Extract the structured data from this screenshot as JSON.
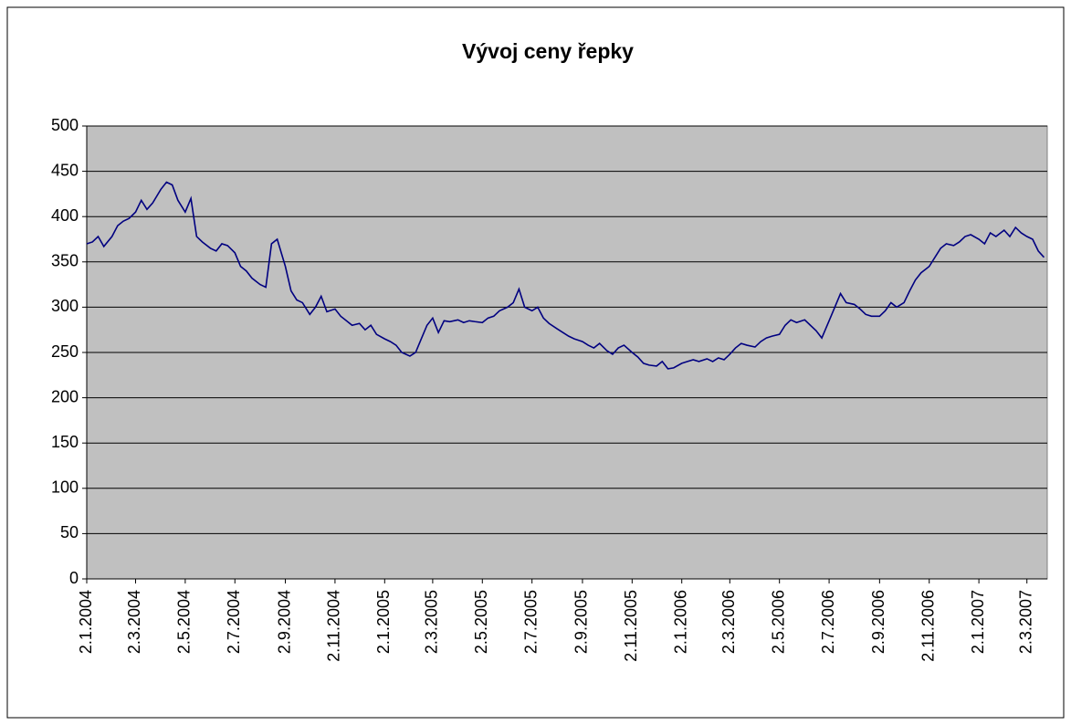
{
  "chart_data": {
    "type": "line",
    "title": "Vývoj ceny řepky",
    "x": [
      "2004-01-02",
      "2004-01-09",
      "2004-01-16",
      "2004-01-23",
      "2004-02-02",
      "2004-02-09",
      "2004-02-16",
      "2004-02-23",
      "2004-03-02",
      "2004-03-09",
      "2004-03-16",
      "2004-03-23",
      "2004-04-02",
      "2004-04-09",
      "2004-04-16",
      "2004-04-23",
      "2004-05-02",
      "2004-05-09",
      "2004-05-16",
      "2004-05-23",
      "2004-06-02",
      "2004-06-09",
      "2004-06-16",
      "2004-06-23",
      "2004-07-02",
      "2004-07-09",
      "2004-07-16",
      "2004-07-23",
      "2004-08-02",
      "2004-08-09",
      "2004-08-16",
      "2004-08-23",
      "2004-09-02",
      "2004-09-09",
      "2004-09-16",
      "2004-09-23",
      "2004-10-02",
      "2004-10-09",
      "2004-10-16",
      "2004-10-23",
      "2004-11-02",
      "2004-11-09",
      "2004-11-16",
      "2004-11-23",
      "2004-12-02",
      "2004-12-09",
      "2004-12-16",
      "2004-12-23",
      "2005-01-02",
      "2005-01-09",
      "2005-01-16",
      "2005-01-23",
      "2005-02-02",
      "2005-02-09",
      "2005-02-16",
      "2005-02-23",
      "2005-03-02",
      "2005-03-09",
      "2005-03-16",
      "2005-03-23",
      "2005-04-02",
      "2005-04-09",
      "2005-04-16",
      "2005-04-23",
      "2005-05-02",
      "2005-05-09",
      "2005-05-16",
      "2005-05-23",
      "2005-06-02",
      "2005-06-09",
      "2005-06-16",
      "2005-06-23",
      "2005-07-02",
      "2005-07-09",
      "2005-07-16",
      "2005-07-23",
      "2005-08-02",
      "2005-08-09",
      "2005-08-16",
      "2005-08-23",
      "2005-09-02",
      "2005-09-09",
      "2005-09-16",
      "2005-09-23",
      "2005-10-02",
      "2005-10-09",
      "2005-10-16",
      "2005-10-23",
      "2005-11-02",
      "2005-11-09",
      "2005-11-16",
      "2005-11-23",
      "2005-12-02",
      "2005-12-09",
      "2005-12-16",
      "2005-12-23",
      "2006-01-02",
      "2006-01-09",
      "2006-01-16",
      "2006-01-23",
      "2006-02-02",
      "2006-02-09",
      "2006-02-16",
      "2006-02-23",
      "2006-03-02",
      "2006-03-09",
      "2006-03-16",
      "2006-03-23",
      "2006-04-02",
      "2006-04-09",
      "2006-04-16",
      "2006-04-23",
      "2006-05-02",
      "2006-05-09",
      "2006-05-16",
      "2006-05-23",
      "2006-06-02",
      "2006-06-09",
      "2006-06-16",
      "2006-06-23",
      "2006-07-02",
      "2006-07-09",
      "2006-07-16",
      "2006-07-23",
      "2006-08-02",
      "2006-08-09",
      "2006-08-16",
      "2006-08-23",
      "2006-09-02",
      "2006-09-09",
      "2006-09-16",
      "2006-09-23",
      "2006-10-02",
      "2006-10-09",
      "2006-10-16",
      "2006-10-23",
      "2006-11-02",
      "2006-11-09",
      "2006-11-16",
      "2006-11-23",
      "2006-12-02",
      "2006-12-09",
      "2006-12-16",
      "2006-12-23",
      "2007-01-02",
      "2007-01-09",
      "2007-01-16",
      "2007-01-23",
      "2007-02-02",
      "2007-02-09",
      "2007-02-16",
      "2007-02-23",
      "2007-03-02",
      "2007-03-09",
      "2007-03-16",
      "2007-03-23"
    ],
    "values": [
      370,
      372,
      378,
      367,
      378,
      390,
      395,
      398,
      405,
      418,
      408,
      415,
      430,
      438,
      435,
      418,
      405,
      420,
      378,
      372,
      365,
      362,
      370,
      368,
      360,
      345,
      340,
      332,
      325,
      322,
      370,
      375,
      345,
      318,
      308,
      305,
      292,
      300,
      312,
      295,
      298,
      290,
      285,
      280,
      282,
      275,
      280,
      270,
      265,
      262,
      258,
      250,
      246,
      250,
      265,
      280,
      288,
      272,
      285,
      284,
      286,
      283,
      285,
      284,
      283,
      288,
      290,
      296,
      300,
      305,
      320,
      300,
      296,
      300,
      288,
      282,
      276,
      272,
      268,
      265,
      262,
      258,
      255,
      260,
      252,
      248,
      255,
      258,
      250,
      245,
      238,
      236,
      235,
      240,
      232,
      233,
      238,
      240,
      242,
      240,
      243,
      240,
      244,
      242,
      248,
      255,
      260,
      258,
      256,
      262,
      266,
      268,
      270,
      280,
      286,
      283,
      286,
      280,
      274,
      266,
      285,
      300,
      315,
      305,
      303,
      298,
      292,
      290,
      290,
      296,
      305,
      300,
      305,
      318,
      330,
      338,
      345,
      355,
      365,
      370,
      368,
      372,
      378,
      380,
      375,
      370,
      382,
      378,
      385,
      378,
      388,
      382,
      378,
      375,
      362,
      355
    ],
    "color": "#000080",
    "plot_background": "#c0c0c0",
    "grid": true,
    "xlim": [
      "2004-01-02",
      "2007-03-27"
    ],
    "xticks": [
      {
        "value": "2004-01-02",
        "label": "2.1.2004"
      },
      {
        "value": "2004-03-02",
        "label": "2.3.2004"
      },
      {
        "value": "2004-05-02",
        "label": "2.5.2004"
      },
      {
        "value": "2004-07-02",
        "label": "2.7.2004"
      },
      {
        "value": "2004-09-02",
        "label": "2.9.2004"
      },
      {
        "value": "2004-11-02",
        "label": "2.11.2004"
      },
      {
        "value": "2005-01-02",
        "label": "2.1.2005"
      },
      {
        "value": "2005-03-02",
        "label": "2.3.2005"
      },
      {
        "value": "2005-05-02",
        "label": "2.5.2005"
      },
      {
        "value": "2005-07-02",
        "label": "2.7.2005"
      },
      {
        "value": "2005-09-02",
        "label": "2.9.2005"
      },
      {
        "value": "2005-11-02",
        "label": "2.11.2005"
      },
      {
        "value": "2006-01-02",
        "label": "2.1.2006"
      },
      {
        "value": "2006-03-02",
        "label": "2.3.2006"
      },
      {
        "value": "2006-05-02",
        "label": "2.5.2006"
      },
      {
        "value": "2006-07-02",
        "label": "2.7.2006"
      },
      {
        "value": "2006-09-02",
        "label": "2.9.2006"
      },
      {
        "value": "2006-11-02",
        "label": "2.11.2006"
      },
      {
        "value": "2007-01-02",
        "label": "2.1.2007"
      },
      {
        "value": "2007-03-02",
        "label": "2.3.2007"
      }
    ],
    "ylim": [
      0,
      500
    ],
    "yticks": [
      0,
      50,
      100,
      150,
      200,
      250,
      300,
      350,
      400,
      450,
      500
    ]
  }
}
